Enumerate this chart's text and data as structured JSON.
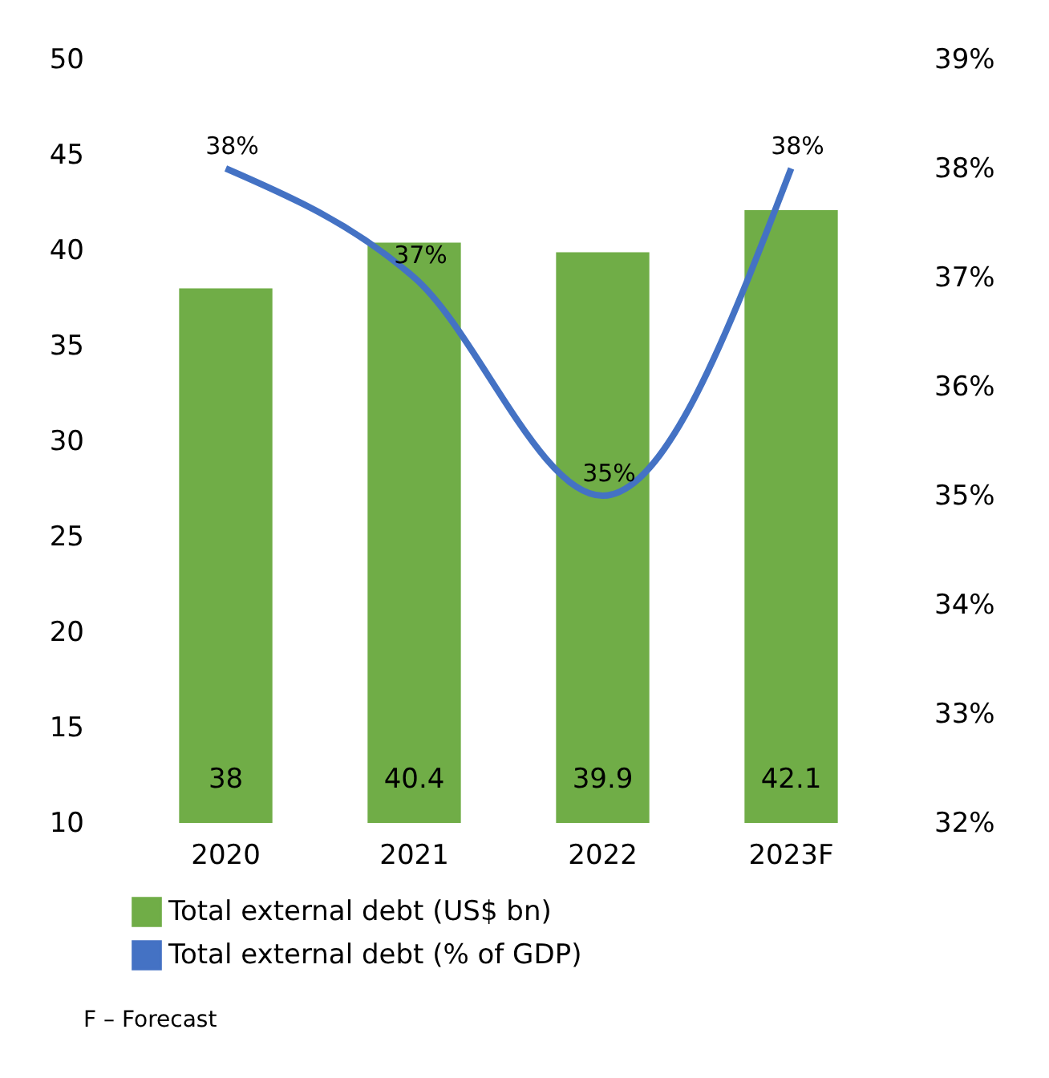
{
  "chart_data": {
    "type": "bar",
    "categories": [
      "2020",
      "2021",
      "2022",
      "2023F"
    ],
    "series": [
      {
        "name": "Total external debt (US$ bn)",
        "color": "#70ad47",
        "values": [
          38,
          40.4,
          39.9,
          42.1
        ],
        "value_labels": [
          "38",
          "40.4",
          "39.9",
          "42.1"
        ]
      },
      {
        "name": "Total external debt (% of GDP)",
        "type": "line",
        "axis": "y2",
        "color": "#4472c4",
        "values": [
          38,
          37,
          35,
          38
        ],
        "value_labels": [
          "38%",
          "37%",
          "35%",
          "38%"
        ]
      }
    ],
    "ylim": [
      10,
      50
    ],
    "yticks": [
      10,
      15,
      20,
      25,
      30,
      35,
      40,
      45,
      50
    ],
    "y2lim": [
      32,
      39
    ],
    "y2ticks": [
      {
        "value": 32,
        "label": "32%"
      },
      {
        "value": 33,
        "label": "33%"
      },
      {
        "value": 34,
        "label": "34%"
      },
      {
        "value": 35,
        "label": "35%"
      },
      {
        "value": 36,
        "label": "36%"
      },
      {
        "value": 37,
        "label": "37%"
      },
      {
        "value": 38,
        "label": "38%"
      },
      {
        "value": 39,
        "label": "39%"
      }
    ],
    "legend": "bottom",
    "grid": false,
    "annotations": [
      "F – Forecast"
    ]
  }
}
